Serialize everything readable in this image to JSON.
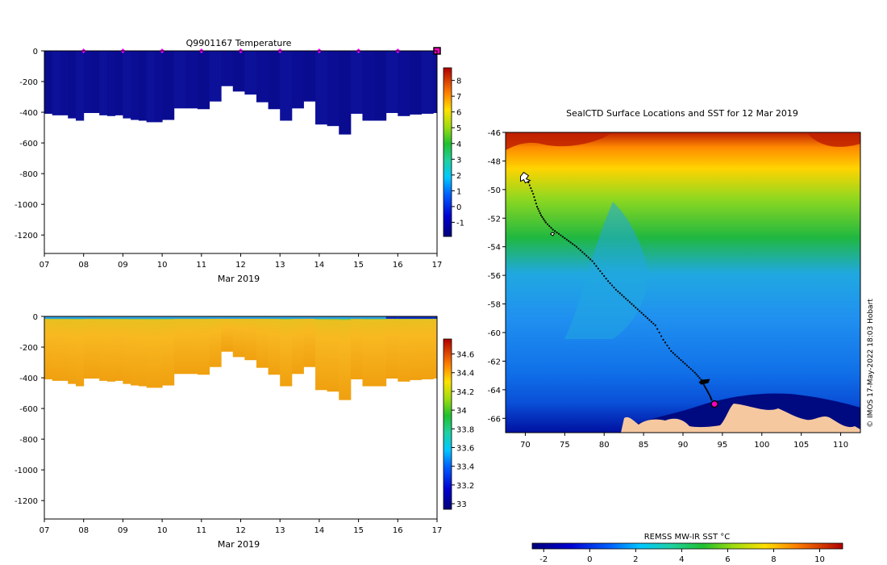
{
  "chart_data": [
    {
      "type": "heatmap",
      "variable": "temperature",
      "title": "Q9901167  Temperature",
      "xlabel": "Mar 2019",
      "ylabel": "",
      "x_ticks": [
        "07",
        "08",
        "09",
        "10",
        "11",
        "12",
        "13",
        "14",
        "15",
        "16",
        "17"
      ],
      "y_ticks": [
        "0",
        "-200",
        "-400",
        "-600",
        "-800",
        "-1000",
        "-1200"
      ],
      "xlim": [
        7,
        17
      ],
      "ylim": [
        -1320,
        0
      ],
      "colorbar": {
        "min": -1.9,
        "max": 8.8,
        "ticks": [
          "8",
          "7",
          "6",
          "5",
          "4",
          "3",
          "2",
          "1",
          "0",
          "-1"
        ]
      },
      "profile_days": [
        7.0,
        7.2,
        7.4,
        7.6,
        7.8,
        8.0,
        8.2,
        8.4,
        8.6,
        8.8,
        9.0,
        9.2,
        9.4,
        9.6,
        9.8,
        10.0,
        10.3,
        10.6,
        10.9,
        11.2,
        11.5,
        11.8,
        12.1,
        12.4,
        12.7,
        13.0,
        13.3,
        13.6,
        13.9,
        14.2,
        14.5,
        14.8,
        15.1,
        15.4,
        15.7,
        16.0,
        16.3,
        16.6,
        16.9
      ],
      "profile_max_depth": [
        410,
        420,
        420,
        440,
        455,
        405,
        405,
        420,
        425,
        420,
        440,
        450,
        455,
        465,
        465,
        450,
        375,
        375,
        380,
        330,
        230,
        265,
        285,
        335,
        380,
        455,
        375,
        330,
        480,
        490,
        545,
        410,
        455,
        455,
        405,
        425,
        415,
        410,
        405
      ],
      "surface_markers_days": [
        8,
        9,
        10,
        11,
        12,
        13,
        14,
        15,
        16,
        17
      ]
    },
    {
      "type": "heatmap",
      "variable": "salinity",
      "title": "",
      "xlabel": "Mar 2019",
      "ylabel": "",
      "x_ticks": [
        "07",
        "08",
        "09",
        "10",
        "11",
        "12",
        "13",
        "14",
        "15",
        "16",
        "17"
      ],
      "y_ticks": [
        "0",
        "-200",
        "-400",
        "-600",
        "-800",
        "-1000",
        "-1200"
      ],
      "xlim": [
        7,
        17
      ],
      "ylim": [
        -1320,
        0
      ],
      "colorbar": {
        "min": 32.94,
        "max": 34.76,
        "ticks": [
          "34.6",
          "34.4",
          "34.2",
          "34",
          "33.8",
          "33.6",
          "33.4",
          "33.2",
          "33"
        ]
      }
    },
    {
      "type": "heatmap",
      "variable": "sea surface temperature map",
      "title": "SealCTD Surface Locations and SST for 12 Mar 2019",
      "xlabel": "",
      "ylabel": "",
      "x_ticks": [
        "70",
        "75",
        "80",
        "85",
        "90",
        "95",
        "100",
        "105",
        "110"
      ],
      "y_ticks": [
        "-46",
        "-48",
        "-50",
        "-52",
        "-54",
        "-56",
        "-58",
        "-60",
        "-62",
        "-64",
        "-66"
      ],
      "xlim": [
        67.5,
        112.5
      ],
      "ylim": [
        -67,
        -46
      ],
      "colorbar": {
        "label": "REMSS MW-IR SST °C",
        "min": -2.5,
        "max": 11.0,
        "ticks": [
          "-2",
          "0",
          "2",
          "4",
          "6",
          "8",
          "10"
        ]
      },
      "track": {
        "lon": [
          70.4,
          71.0,
          71.5,
          72.0,
          72.6,
          73.5,
          74.5,
          75.5,
          76.5,
          77.5,
          78.5,
          79.5,
          80.5,
          81.5,
          82.5,
          83.5,
          84.5,
          85.5,
          86.5,
          87.5,
          88.5,
          89.5,
          90.5,
          91.5,
          92.3,
          92.6,
          93.0,
          93.4,
          93.7
        ],
        "lat": [
          -49.5,
          -50.3,
          -51.2,
          -51.8,
          -52.3,
          -52.8,
          -53.2,
          -53.6,
          -54.0,
          -54.5,
          -55.0,
          -55.7,
          -56.4,
          -57.0,
          -57.5,
          -58.0,
          -58.5,
          -59.0,
          -59.5,
          -60.5,
          -61.3,
          -61.8,
          -62.3,
          -62.8,
          -63.3,
          -63.6,
          -64.0,
          -64.4,
          -64.8
        ]
      },
      "latest_position": {
        "lon": 94.0,
        "lat": -65.0
      },
      "credit": "© IMOS 17-May-2022 18:03 Hobart"
    }
  ]
}
